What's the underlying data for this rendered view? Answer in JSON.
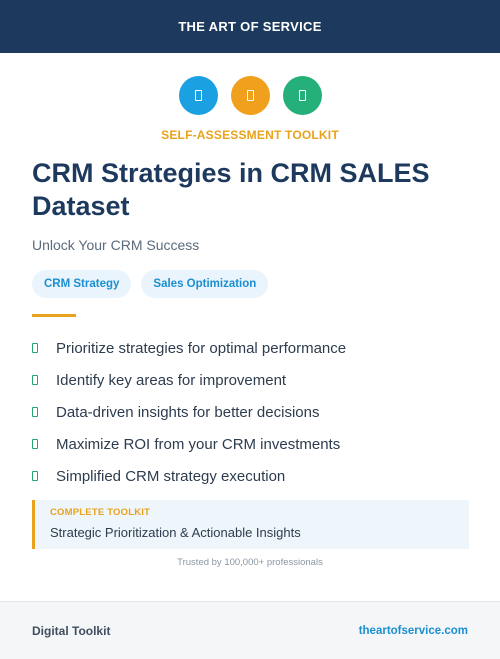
{
  "header": {
    "brand": "THE ART OF SERVICE"
  },
  "icons": [
    {
      "name": "document-icon",
      "color": "#1ba1e2"
    },
    {
      "name": "document-icon",
      "color": "#f0a01c"
    },
    {
      "name": "document-icon",
      "color": "#25b07a"
    }
  ],
  "kicker": "SELF-ASSESSMENT TOOLKIT",
  "title": "CRM Strategies in CRM SALES Dataset",
  "subtitle": "Unlock Your CRM Success",
  "tags": [
    "CRM Strategy",
    "Sales Optimization"
  ],
  "features": [
    "Prioritize strategies for optimal performance",
    "Identify key areas for improvement",
    "Data-driven insights for better decisions",
    "Maximize ROI from your CRM investments",
    "Simplified CRM strategy execution"
  ],
  "callout": {
    "kicker": "COMPLETE TOOLKIT",
    "text": "Strategic Prioritization & Actionable Insights"
  },
  "trusted": "Trusted by 100,000+ professionals",
  "footer": {
    "left": "Digital Toolkit",
    "right": "theartofservice.com"
  },
  "colors": {
    "navy": "#1d3a5e",
    "accent": "#e8a21c",
    "blue": "#1b8fd0",
    "green": "#25a86a"
  }
}
